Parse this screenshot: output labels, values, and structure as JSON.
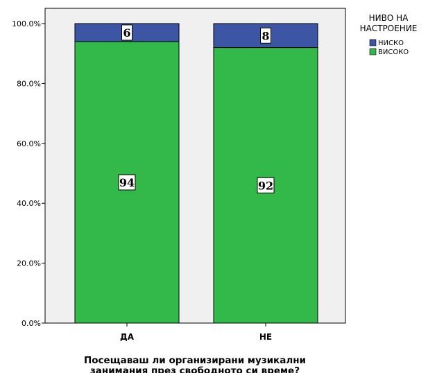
{
  "chart_data": {
    "type": "bar",
    "stacked": true,
    "categories": [
      "ДА",
      "НЕ"
    ],
    "series": [
      {
        "name": "ВИСОКО",
        "values": [
          94,
          92
        ],
        "color": "#33b94a"
      },
      {
        "name": "НИСКО",
        "values": [
          6,
          8
        ],
        "color": "#3d55a5"
      }
    ],
    "data_labels": [
      [
        "94",
        "92"
      ],
      [
        "6",
        "8"
      ]
    ],
    "y_tick_labels": [
      "0.0%",
      "20.0%",
      "40.0%",
      "60.0%",
      "80.0%",
      "100.0%"
    ],
    "ylim": [
      0,
      100
    ],
    "xlabel_lines": [
      "Посещаваш ли организирани музикални",
      "занимания през свободното си време?"
    ],
    "ylabel": "",
    "legend": {
      "title_lines": [
        "НИВО НА",
        "НАСТРОЕНИЕ"
      ],
      "placement": "right",
      "items": [
        "НИСКО",
        "ВИСОКО"
      ]
    },
    "plot_background": "#f0f0f0",
    "grid": false
  }
}
